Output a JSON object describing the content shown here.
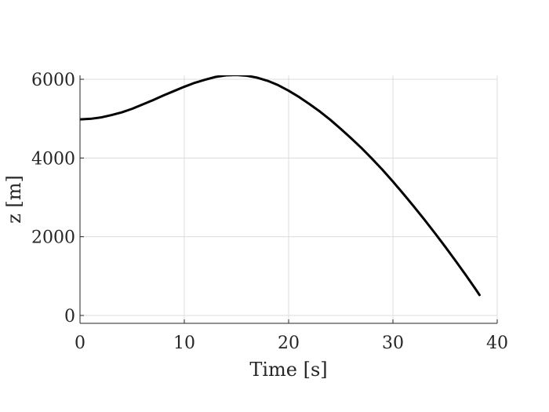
{
  "chart_data": {
    "type": "line",
    "xlabel": "Time [s]",
    "ylabel": "z [m]",
    "xlim": [
      0,
      40
    ],
    "ylim": [
      -200,
      6100
    ],
    "xticks": [
      0,
      10,
      20,
      30,
      40
    ],
    "yticks": [
      0,
      2000,
      4000,
      6000
    ],
    "grid": true,
    "series": [
      {
        "color": "#000000",
        "x": [
          0,
          1,
          2,
          3,
          4,
          5,
          6,
          7,
          8,
          9,
          10,
          11,
          12,
          13,
          14,
          15,
          16,
          17,
          18,
          19,
          20,
          21,
          22,
          23,
          24,
          25,
          26,
          27,
          28,
          29,
          30,
          31,
          32,
          33,
          34,
          35,
          36,
          37,
          38,
          38.3
        ],
        "y": [
          4980,
          4995,
          5030,
          5090,
          5160,
          5250,
          5360,
          5470,
          5590,
          5700,
          5810,
          5910,
          5990,
          6060,
          6100,
          6110,
          6090,
          6040,
          5960,
          5850,
          5710,
          5550,
          5370,
          5180,
          4970,
          4740,
          4500,
          4250,
          3980,
          3700,
          3400,
          3090,
          2770,
          2440,
          2100,
          1750,
          1390,
          1020,
          640,
          520
        ]
      }
    ]
  }
}
